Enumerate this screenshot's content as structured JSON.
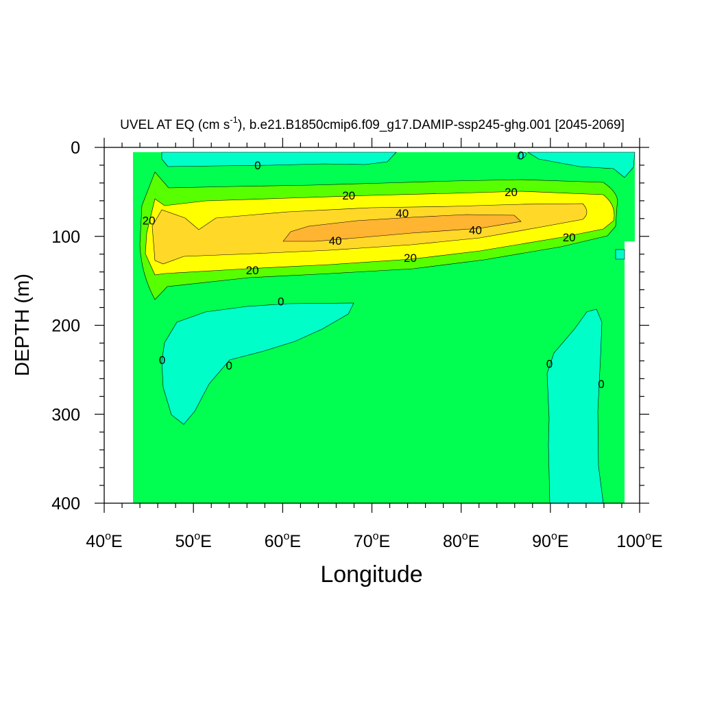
{
  "chart_data": {
    "type": "heatmap",
    "title": "UVEL AT EQ (cm s",
    "title_superscript": "-1",
    "title_suffix": "), b.e21.B1850cmip6.f09_g17.DAMIP-ssp245-ghg.001 [2045-2069]",
    "xlabel": "Longitude",
    "ylabel": "DEPTH (m)",
    "xlim": [
      40,
      100
    ],
    "ylim": [
      400,
      0
    ],
    "x_ticks": [
      40,
      50,
      60,
      70,
      80,
      90,
      100
    ],
    "x_tick_labels": [
      "40",
      "50",
      "60",
      "70",
      "80",
      "90",
      "100"
    ],
    "x_tick_suffix": "E",
    "y_ticks": [
      0,
      100,
      200,
      300,
      400
    ],
    "y_tick_labels": [
      "0",
      "100",
      "200",
      "300",
      "400"
    ],
    "contour_levels": [
      0,
      10,
      20,
      30,
      40
    ],
    "contour_labels": [
      {
        "text": "0",
        "lon": 57.2,
        "depth": 20
      },
      {
        "text": "0",
        "lon": 86.7,
        "depth": 9
      },
      {
        "text": "20",
        "lon": 67.4,
        "depth": 54
      },
      {
        "text": "20",
        "lon": 85.6,
        "depth": 50
      },
      {
        "text": "20",
        "lon": 45.0,
        "depth": 82
      },
      {
        "text": "40",
        "lon": 73.4,
        "depth": 74
      },
      {
        "text": "40",
        "lon": 81.6,
        "depth": 93
      },
      {
        "text": "40",
        "lon": 65.9,
        "depth": 105
      },
      {
        "text": "20",
        "lon": 92.1,
        "depth": 101
      },
      {
        "text": "20",
        "lon": 74.3,
        "depth": 124
      },
      {
        "text": "20",
        "lon": 56.6,
        "depth": 138
      },
      {
        "text": "0",
        "lon": 59.8,
        "depth": 173
      },
      {
        "text": "0",
        "lon": 46.5,
        "depth": 239
      },
      {
        "text": "0",
        "lon": 54.0,
        "depth": 245
      },
      {
        "text": "0",
        "lon": 89.9,
        "depth": 243
      },
      {
        "text": "0",
        "lon": 95.7,
        "depth": 266
      }
    ],
    "colors": {
      "below_0": "#00ffc8",
      "0_to_10": "#00ff50",
      "10_to_20": "#58ff00",
      "20_to_30": "#ffff00",
      "30_to_40": "#ffd828",
      "above_40": "#ffb432",
      "missing": "#ffffff"
    }
  }
}
